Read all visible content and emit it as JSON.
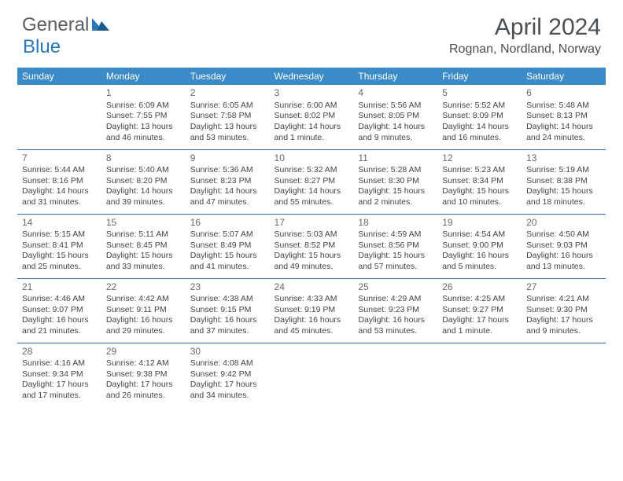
{
  "logo": {
    "part1": "General",
    "part2": "Blue"
  },
  "title": {
    "month": "April 2024",
    "location": "Rognan, Nordland, Norway"
  },
  "colors": {
    "header_bg": "#3b8bc9",
    "header_text": "#ffffff",
    "row_border": "#2f6fa3",
    "body_text": "#444444",
    "logo_gray": "#5a5f63",
    "logo_blue": "#2b78b8"
  },
  "dayHeaders": [
    "Sunday",
    "Monday",
    "Tuesday",
    "Wednesday",
    "Thursday",
    "Friday",
    "Saturday"
  ],
  "weeks": [
    [
      null,
      {
        "n": "1",
        "sr": "Sunrise: 6:09 AM",
        "ss": "Sunset: 7:55 PM",
        "dl": "Daylight: 13 hours and 46 minutes."
      },
      {
        "n": "2",
        "sr": "Sunrise: 6:05 AM",
        "ss": "Sunset: 7:58 PM",
        "dl": "Daylight: 13 hours and 53 minutes."
      },
      {
        "n": "3",
        "sr": "Sunrise: 6:00 AM",
        "ss": "Sunset: 8:02 PM",
        "dl": "Daylight: 14 hours and 1 minute."
      },
      {
        "n": "4",
        "sr": "Sunrise: 5:56 AM",
        "ss": "Sunset: 8:05 PM",
        "dl": "Daylight: 14 hours and 9 minutes."
      },
      {
        "n": "5",
        "sr": "Sunrise: 5:52 AM",
        "ss": "Sunset: 8:09 PM",
        "dl": "Daylight: 14 hours and 16 minutes."
      },
      {
        "n": "6",
        "sr": "Sunrise: 5:48 AM",
        "ss": "Sunset: 8:13 PM",
        "dl": "Daylight: 14 hours and 24 minutes."
      }
    ],
    [
      {
        "n": "7",
        "sr": "Sunrise: 5:44 AM",
        "ss": "Sunset: 8:16 PM",
        "dl": "Daylight: 14 hours and 31 minutes."
      },
      {
        "n": "8",
        "sr": "Sunrise: 5:40 AM",
        "ss": "Sunset: 8:20 PM",
        "dl": "Daylight: 14 hours and 39 minutes."
      },
      {
        "n": "9",
        "sr": "Sunrise: 5:36 AM",
        "ss": "Sunset: 8:23 PM",
        "dl": "Daylight: 14 hours and 47 minutes."
      },
      {
        "n": "10",
        "sr": "Sunrise: 5:32 AM",
        "ss": "Sunset: 8:27 PM",
        "dl": "Daylight: 14 hours and 55 minutes."
      },
      {
        "n": "11",
        "sr": "Sunrise: 5:28 AM",
        "ss": "Sunset: 8:30 PM",
        "dl": "Daylight: 15 hours and 2 minutes."
      },
      {
        "n": "12",
        "sr": "Sunrise: 5:23 AM",
        "ss": "Sunset: 8:34 PM",
        "dl": "Daylight: 15 hours and 10 minutes."
      },
      {
        "n": "13",
        "sr": "Sunrise: 5:19 AM",
        "ss": "Sunset: 8:38 PM",
        "dl": "Daylight: 15 hours and 18 minutes."
      }
    ],
    [
      {
        "n": "14",
        "sr": "Sunrise: 5:15 AM",
        "ss": "Sunset: 8:41 PM",
        "dl": "Daylight: 15 hours and 25 minutes."
      },
      {
        "n": "15",
        "sr": "Sunrise: 5:11 AM",
        "ss": "Sunset: 8:45 PM",
        "dl": "Daylight: 15 hours and 33 minutes."
      },
      {
        "n": "16",
        "sr": "Sunrise: 5:07 AM",
        "ss": "Sunset: 8:49 PM",
        "dl": "Daylight: 15 hours and 41 minutes."
      },
      {
        "n": "17",
        "sr": "Sunrise: 5:03 AM",
        "ss": "Sunset: 8:52 PM",
        "dl": "Daylight: 15 hours and 49 minutes."
      },
      {
        "n": "18",
        "sr": "Sunrise: 4:59 AM",
        "ss": "Sunset: 8:56 PM",
        "dl": "Daylight: 15 hours and 57 minutes."
      },
      {
        "n": "19",
        "sr": "Sunrise: 4:54 AM",
        "ss": "Sunset: 9:00 PM",
        "dl": "Daylight: 16 hours and 5 minutes."
      },
      {
        "n": "20",
        "sr": "Sunrise: 4:50 AM",
        "ss": "Sunset: 9:03 PM",
        "dl": "Daylight: 16 hours and 13 minutes."
      }
    ],
    [
      {
        "n": "21",
        "sr": "Sunrise: 4:46 AM",
        "ss": "Sunset: 9:07 PM",
        "dl": "Daylight: 16 hours and 21 minutes."
      },
      {
        "n": "22",
        "sr": "Sunrise: 4:42 AM",
        "ss": "Sunset: 9:11 PM",
        "dl": "Daylight: 16 hours and 29 minutes."
      },
      {
        "n": "23",
        "sr": "Sunrise: 4:38 AM",
        "ss": "Sunset: 9:15 PM",
        "dl": "Daylight: 16 hours and 37 minutes."
      },
      {
        "n": "24",
        "sr": "Sunrise: 4:33 AM",
        "ss": "Sunset: 9:19 PM",
        "dl": "Daylight: 16 hours and 45 minutes."
      },
      {
        "n": "25",
        "sr": "Sunrise: 4:29 AM",
        "ss": "Sunset: 9:23 PM",
        "dl": "Daylight: 16 hours and 53 minutes."
      },
      {
        "n": "26",
        "sr": "Sunrise: 4:25 AM",
        "ss": "Sunset: 9:27 PM",
        "dl": "Daylight: 17 hours and 1 minute."
      },
      {
        "n": "27",
        "sr": "Sunrise: 4:21 AM",
        "ss": "Sunset: 9:30 PM",
        "dl": "Daylight: 17 hours and 9 minutes."
      }
    ],
    [
      {
        "n": "28",
        "sr": "Sunrise: 4:16 AM",
        "ss": "Sunset: 9:34 PM",
        "dl": "Daylight: 17 hours and 17 minutes."
      },
      {
        "n": "29",
        "sr": "Sunrise: 4:12 AM",
        "ss": "Sunset: 9:38 PM",
        "dl": "Daylight: 17 hours and 26 minutes."
      },
      {
        "n": "30",
        "sr": "Sunrise: 4:08 AM",
        "ss": "Sunset: 9:42 PM",
        "dl": "Daylight: 17 hours and 34 minutes."
      },
      null,
      null,
      null,
      null
    ]
  ]
}
